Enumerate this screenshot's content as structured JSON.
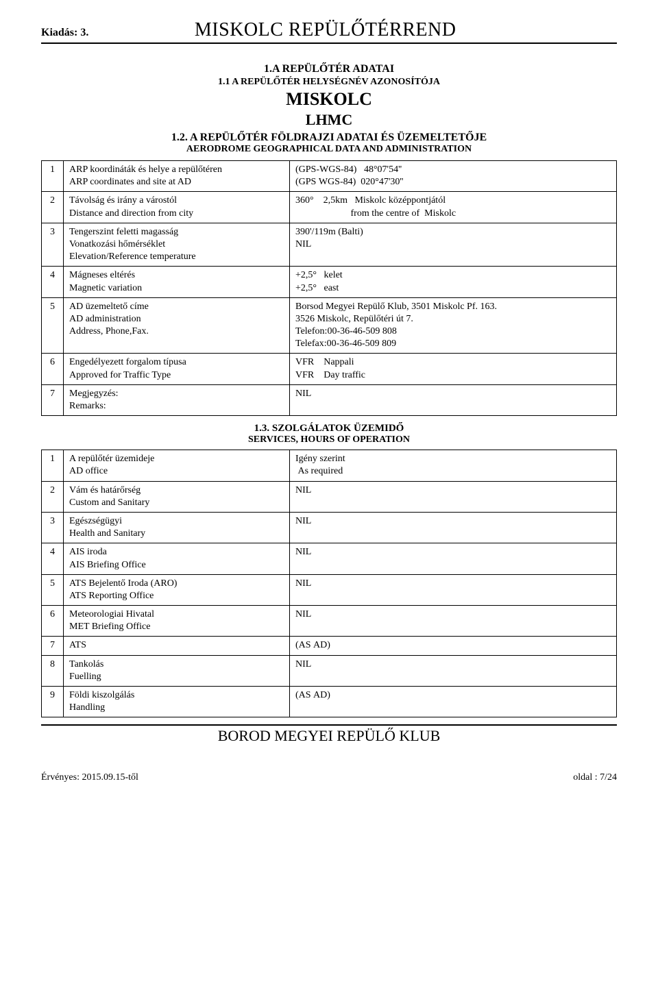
{
  "header": {
    "kiadas": "Kiadás: 3.",
    "title": "MISKOLC REPÜLŐTÉRREND"
  },
  "sec_1A": {
    "line1": "1.A REPÜLŐTÉR ADATAI",
    "line2": "1.1  A REPÜLŐTÉR HELYSÉGNÉV AZONOSÍTÓJA",
    "name": "MISKOLC",
    "code": "LHMC"
  },
  "sec_12": {
    "line1": "1.2. A REPÜLŐTÉR FÖLDRAJZI ADATAI ÉS ÜZEMELTETŐJE",
    "line2": "AERODROME GEOGRAPHICAL DATA AND ADMINISTRATION",
    "rows": [
      {
        "num": "1",
        "label": "ARP koordináták és helye a repülőtéren\nARP coordinates and site at AD",
        "val": "(GPS-WGS-84)   48°07'54''\n(GPS WGS-84)  020°47'30''"
      },
      {
        "num": "2",
        "label": "Távolság és irány a várostól\nDistance and direction from city",
        "val": "360°    2,5km   Miskolc középpontjától\n                       from the centre of  Miskolc"
      },
      {
        "num": "3",
        "label": "Tengerszint feletti magasság\nVonatkozási hőmérséklet\nElevation/Reference temperature",
        "val": "390'/119m (Balti)\nNIL"
      },
      {
        "num": "4",
        "label": "Mágneses eltérés\nMagnetic variation",
        "val": "+2,5°   kelet\n+2,5°   east"
      },
      {
        "num": "5",
        "label": "AD üzemeltető címe\nAD administration\nAddress, Phone,Fax.",
        "val": "Borsod Megyei Repülő Klub, 3501 Miskolc Pf. 163.\n3526 Miskolc, Repülőtéri út 7.\nTelefon:00-36-46-509 808\nTelefax:00-36-46-509 809"
      },
      {
        "num": "6",
        "label": "Engedélyezett forgalom típusa\nApproved for Traffic Type",
        "val": "VFR    Nappali\nVFR    Day traffic"
      },
      {
        "num": "7",
        "label": "Megjegyzés:\nRemarks:",
        "val": "NIL"
      }
    ]
  },
  "sec_13": {
    "title1": "1.3. SZOLGÁLATOK ÜZEMIDŐ",
    "title2": "SERVICES, HOURS OF OPERATION",
    "rows": [
      {
        "num": "1",
        "label": "A repülőtér üzemideje\nAD office",
        "val": "Igény szerint\n As required"
      },
      {
        "num": "2",
        "label": "Vám és határőrség\nCustom and Sanitary",
        "val": "NIL"
      },
      {
        "num": "3",
        "label": "Egészségügyi\nHealth and Sanitary",
        "val": "NIL"
      },
      {
        "num": "4",
        "label": "AIS iroda\nAIS Briefing Office",
        "val": "NIL"
      },
      {
        "num": "5",
        "label": "ATS Bejelentő Iroda (ARO)\nATS Reporting Office",
        "val": "NIL"
      },
      {
        "num": "6",
        "label": "Meteorologiai Hivatal\nMET Briefing Office",
        "val": "NIL"
      },
      {
        "num": "7",
        "label": "ATS",
        "val": "(AS AD)"
      },
      {
        "num": "8",
        "label": "Tankolás\nFuelling",
        "val": "NIL"
      },
      {
        "num": "9",
        "label": "Földi kiszolgálás\nHandling",
        "val": "(AS AD)"
      }
    ]
  },
  "footer": {
    "org": "BOROD MEGYEI REPÜLŐ KLUB",
    "left": "Érvényes: 2015.09.15-től",
    "right": "oldal : 7/24"
  }
}
